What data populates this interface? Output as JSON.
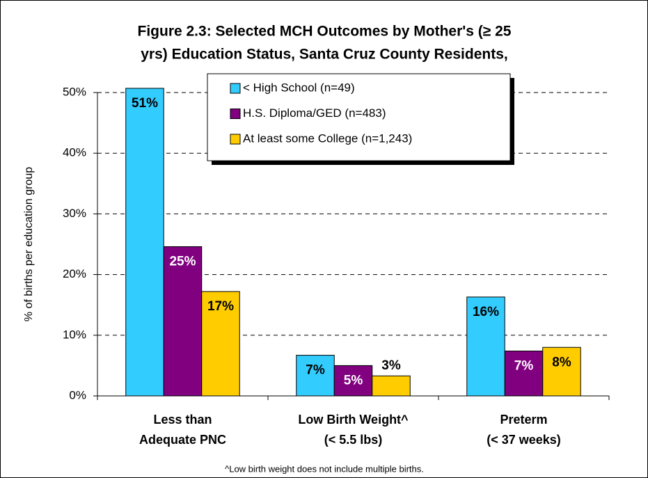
{
  "chart_data": {
    "type": "bar",
    "title": [
      "Figure 2.3: Selected MCH Outcomes by Mother's (≥ 25",
      "yrs) Education Status, Santa Cruz County Residents,"
    ],
    "ylabel": "% of births per education group",
    "categories": [
      [
        "Less than",
        "Adequate PNC"
      ],
      [
        "Low Birth Weight^",
        "(< 5.5 lbs)"
      ],
      [
        "Preterm",
        "(< 37 weeks)"
      ]
    ],
    "series": [
      {
        "name": "< High School (n=49)",
        "color": "#33ccff",
        "values": [
          50.7,
          6.7,
          16.3
        ],
        "value_labels": [
          "51%",
          "7%",
          "16%"
        ]
      },
      {
        "name": "H.S. Diploma/GED (n=483)",
        "color": "#800080",
        "values": [
          24.6,
          5.0,
          7.4
        ],
        "value_labels": [
          "25%",
          "5%",
          "7%"
        ]
      },
      {
        "name": "At least some College (n=1,243)",
        "color": "#ffcc00",
        "values": [
          17.2,
          3.3,
          8.0
        ],
        "value_labels": [
          "17%",
          "3%",
          "8%"
        ]
      }
    ],
    "ylim": [
      0,
      50
    ],
    "yticks": [
      {
        "value": 0,
        "label": "0%"
      },
      {
        "value": 10,
        "label": "10%"
      },
      {
        "value": 20,
        "label": "20%"
      },
      {
        "value": 30,
        "label": "30%"
      },
      {
        "value": 40,
        "label": "40%"
      },
      {
        "value": 50,
        "label": "50%"
      }
    ],
    "grid": true,
    "legend": "top",
    "footnote": "^Low birth weight does not include multiple births."
  }
}
